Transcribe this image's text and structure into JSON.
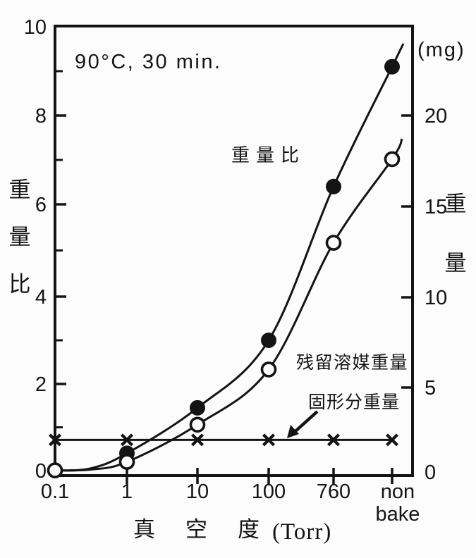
{
  "chart_data": {
    "type": "line",
    "title": "",
    "condition_annotation": "90°C, 30 min.",
    "x_axis": {
      "title": "真空度",
      "unit": "(Torr)",
      "scale": "log-categorical",
      "tick_labels": [
        "0.1",
        "1",
        "10",
        "100",
        "760",
        "non bake"
      ]
    },
    "y_axis_left": {
      "title": "重量比",
      "range": [
        0,
        10
      ],
      "tick_labels": [
        "0",
        "2",
        "4",
        "6",
        "8",
        "10"
      ],
      "minor_ticks": [
        1,
        3,
        5,
        7,
        9
      ]
    },
    "y_axis_right": {
      "title": "重量",
      "unit": "(mg)",
      "range": [
        0,
        25
      ],
      "tick_labels": [
        "0",
        "5",
        "10",
        "15",
        "20"
      ]
    },
    "categories": [
      "0.1",
      "1",
      "10",
      "100",
      "760",
      "non bake"
    ],
    "series": [
      {
        "name": "重量比",
        "axis": "left",
        "marker": "filled-circle",
        "values": [
          null,
          0.4,
          1.45,
          3.0,
          6.4,
          9.1
        ]
      },
      {
        "name": "残留溶媒重量",
        "axis": "right",
        "marker": "open-circle",
        "values": [
          0.1,
          0.6,
          2.8,
          6.0,
          13.0,
          17.6
        ]
      },
      {
        "name": "固形分重量",
        "axis": "right",
        "marker": "x",
        "values": [
          1.9,
          1.9,
          1.9,
          1.9,
          1.9,
          1.9
        ]
      }
    ],
    "grid": false,
    "legend_position": "annotations-on-plot"
  },
  "labels": {
    "condition": "90°C, 30 min.",
    "mg_unit": "(mg)",
    "ratio_label": "重量比",
    "solvent_label": "残留溶媒重量",
    "solid_label": "固形分重量",
    "x_title_cjk": "真空度",
    "x_title_unit": "(Torr)"
  },
  "colors": {
    "ink": "#141414",
    "background": "#fcfcfc"
  }
}
